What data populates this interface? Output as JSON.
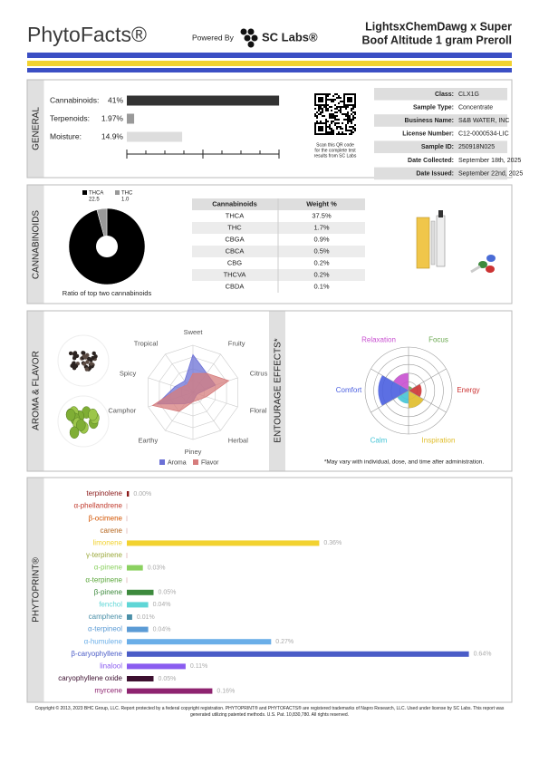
{
  "header": {
    "brand": "PhytoFacts®",
    "powered_by": "Powered By",
    "lab": "SC Labs®",
    "title_lines": [
      "LightsxChemDawg x Super",
      "Boof Altitude 1 gram Preroll"
    ]
  },
  "general": {
    "section": "GENERAL",
    "bars": [
      {
        "label": "Cannabinoids:",
        "value": 41,
        "value_label": "41%",
        "color": "#333333"
      },
      {
        "label": "Terpenoids:",
        "value": 1.97,
        "value_label": "1.97%",
        "color": "#999999"
      },
      {
        "label": "Moisture:",
        "value": 14.9,
        "value_label": "14.9%",
        "color": "#dddddd"
      }
    ],
    "qr_caption": [
      "Scan this QR code",
      "for the complete test",
      "results from SC Labs"
    ],
    "info": [
      [
        "Class:",
        "CLX1G"
      ],
      [
        "Sample Type:",
        "Concentrate"
      ],
      [
        "Business Name:",
        "S&B WATER, INC"
      ],
      [
        "License Number:",
        "C12-0000534-LIC"
      ],
      [
        "Sample ID:",
        "250918N025"
      ],
      [
        "Date Collected:",
        "September 18th, 2025"
      ],
      [
        "Date Issued:",
        "September 22nd, 2025"
      ]
    ]
  },
  "cannabinoids": {
    "section": "CANNABINOIDS",
    "pie": {
      "type": "pie",
      "names": [
        "THCA",
        "THC"
      ],
      "values": [
        22.5,
        1.0
      ],
      "value_labels": [
        "22.5",
        "1.0"
      ],
      "colors": [
        "#000000",
        "#999999"
      ]
    },
    "caption": "Ratio of top two cannabinoids",
    "table": {
      "header": [
        "Cannabinoids",
        "Weight %"
      ],
      "rows": [
        [
          "THCA",
          "37.5%"
        ],
        [
          "THC",
          "1.7%"
        ],
        [
          "CBGA",
          "0.9%"
        ],
        [
          "CBCA",
          "0.5%"
        ],
        [
          "CBG",
          "0.2%"
        ],
        [
          "THCVA",
          "0.2%"
        ],
        [
          "CBDA",
          "0.1%"
        ]
      ]
    }
  },
  "aroma_flavor": {
    "section": "AROMA & FLAVOR",
    "type": "radar",
    "axes": [
      "Sweet",
      "Fruity",
      "Citrus",
      "Floral",
      "Herbal",
      "Piney",
      "Earthy",
      "Camphor",
      "Spicy",
      "Tropical"
    ],
    "rlim": [
      0,
      10
    ],
    "series": [
      {
        "name": "Aroma",
        "color": "#6b70d6",
        "values": [
          8,
          5,
          5,
          1,
          1,
          2,
          3,
          8,
          4,
          3
        ]
      },
      {
        "name": "Flavor",
        "color": "#d67c7c",
        "values": [
          4,
          5,
          8,
          3,
          2,
          2,
          5,
          9,
          3,
          2
        ]
      }
    ]
  },
  "entourage": {
    "section": "ENTOURAGE EFFECTS*",
    "type": "polar-area",
    "categories": [
      "Relaxation",
      "Focus",
      "Energy",
      "Inspiration",
      "Calm",
      "Comfort"
    ],
    "values": [
      4,
      1,
      3,
      4,
      3,
      7
    ],
    "colors": [
      "#c84fd0",
      "#6aa84f",
      "#cc3333",
      "#e0bd29",
      "#45c4d6",
      "#4a5fe0"
    ],
    "rlim": [
      0,
      10
    ],
    "note": "*May vary with individual, dose, and time after administration."
  },
  "phytoprint": {
    "section": "PHYTOPRINT®",
    "type": "bar",
    "categories": [
      "terpinolene",
      "α-phellandrene",
      "β-ocimene",
      "carene",
      "limonene",
      "γ-terpinene",
      "α-pinene",
      "α-terpinene",
      "β-pinene",
      "fenchol",
      "camphene",
      "α-terpineol",
      "α-humulene",
      "β-caryophyllene",
      "linalool",
      "caryophyllene oxide",
      "myrcene"
    ],
    "values": [
      0.004,
      null,
      null,
      null,
      0.36,
      null,
      0.03,
      null,
      0.05,
      0.04,
      0.01,
      0.04,
      0.27,
      0.64,
      0.11,
      0.05,
      0.16
    ],
    "value_labels": [
      "0.00%",
      null,
      null,
      null,
      "0.36%",
      null,
      "0.03%",
      null,
      "0.05%",
      "0.04%",
      "0.01%",
      "0.04%",
      "0.27%",
      "0.64%",
      "0.11%",
      "0.05%",
      "0.16%"
    ],
    "colors": [
      "#8b1a1a",
      "#c0392b",
      "#d35400",
      "#b5651d",
      "#f2d230",
      "#9aa83a",
      "#8bd160",
      "#5aa63a",
      "#3d8a3d",
      "#5fd6d6",
      "#4a8fa8",
      "#5b9bd5",
      "#6aaee8",
      "#4a5cc7",
      "#8a5cf0",
      "#3d1030",
      "#8e2470"
    ]
  },
  "footer": "Copyright © 2013, 2023 BHC Group, LLC. Report protected by a federal copyright registration. PHYTOPRINT® and PHYTOFACTS® are registered trademarks of Napro Research, LLC. Used under license by SC Labs. This report was generated utilizing patented methods. U.S. Pat. 10,830,780. All rights reserved."
}
